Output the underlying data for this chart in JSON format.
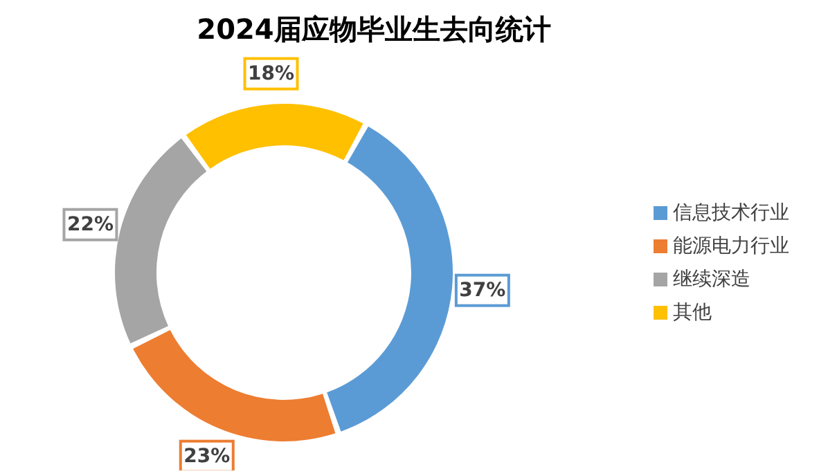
{
  "chart_data": {
    "type": "donut",
    "title": "2024届应物毕业生去向统计",
    "categories": [
      "信息技术行业",
      "能源电力行业",
      "继续深造",
      "其他"
    ],
    "values": [
      37,
      23,
      22,
      18
    ],
    "colors": [
      "#5b9bd5",
      "#ed7d31",
      "#a5a5a5",
      "#ffc000"
    ],
    "value_labels": [
      "37%",
      "23%",
      "22%",
      "18%"
    ],
    "legend": "right"
  }
}
